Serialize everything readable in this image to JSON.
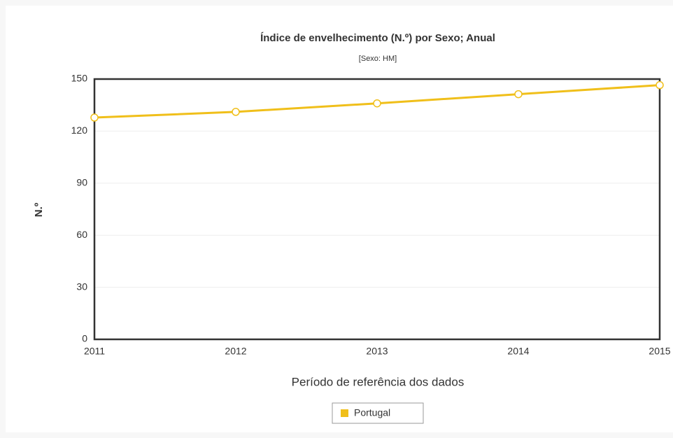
{
  "chart_data": {
    "type": "line",
    "title": "Índice de envelhecimento (N.º) por Sexo; Anual",
    "subtitle": "[Sexo: HM]",
    "y_label": "N.º",
    "x_label": "Período de referência dos dados",
    "categories": [
      "2011",
      "2012",
      "2013",
      "2014",
      "2015"
    ],
    "series": [
      {
        "name": "Portugal",
        "color": "#f0bf1a",
        "values": [
          127.8,
          131.1,
          136.0,
          141.3,
          146.5
        ]
      }
    ],
    "ylim": [
      0,
      150
    ],
    "yticks": [
      0,
      30,
      60,
      90,
      120,
      150
    ],
    "grid": true,
    "legend": "bottom"
  }
}
